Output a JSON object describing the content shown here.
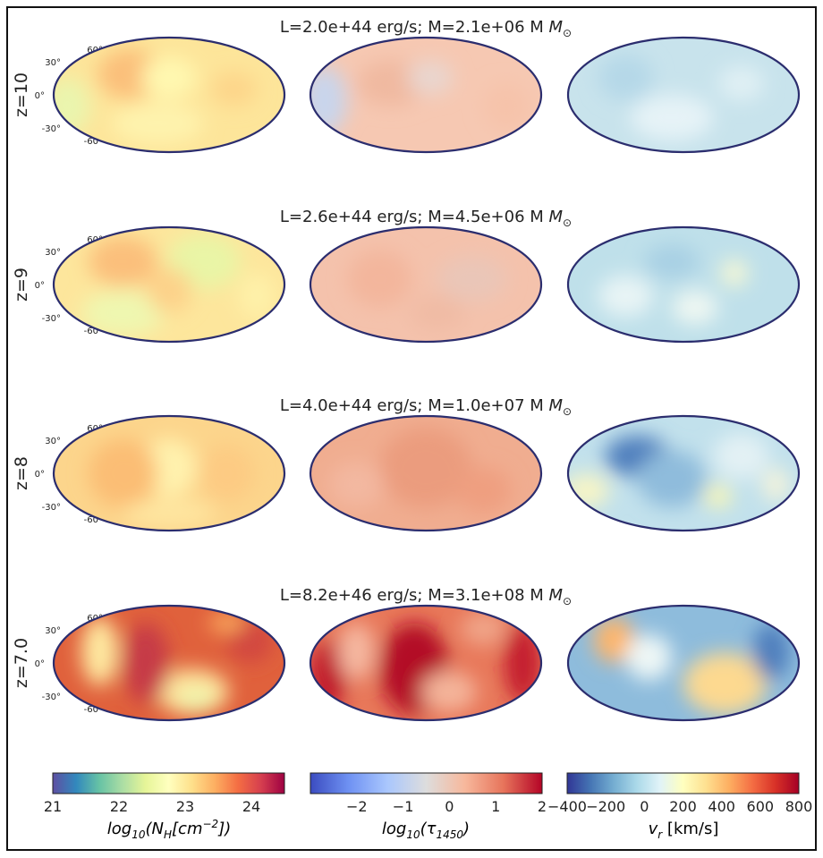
{
  "chart_data": {
    "type": "heatmap",
    "projection": "mollweide",
    "latitude_ticks": [
      "60°",
      "30°",
      "0°",
      "-30°",
      "-60°"
    ],
    "rows": [
      {
        "label": "z=10",
        "title": "L=2.0e+44 erg/s; M=2.1e+06 M",
        "base": [
          "#fde59a",
          "#f6c8b2",
          "#c8e3ec"
        ],
        "blobs": [
          [
            [
              "#fbbf7a",
              0.33,
              0.32,
              0.14,
              0.22
            ],
            [
              "#fff8b0",
              0.5,
              0.35,
              0.12,
              0.18
            ],
            [
              "#eaf5ae",
              0.06,
              0.6,
              0.1,
              0.25
            ],
            [
              "#fef3ad",
              0.45,
              0.75,
              0.2,
              0.18
            ],
            [
              "#fdd58a",
              0.78,
              0.45,
              0.1,
              0.15
            ]
          ],
          [
            [
              "#f0b9a0",
              0.35,
              0.4,
              0.15,
              0.2
            ],
            [
              "#e9d6cf",
              0.52,
              0.35,
              0.1,
              0.15
            ],
            [
              "#c9d5ec",
              0.06,
              0.55,
              0.1,
              0.3
            ],
            [
              "#f6c3aa",
              0.85,
              0.6,
              0.1,
              0.2
            ]
          ],
          [
            [
              "#e6f3f7",
              0.45,
              0.7,
              0.18,
              0.2
            ],
            [
              "#b5d8e8",
              0.25,
              0.35,
              0.12,
              0.2
            ],
            [
              "#e0f0f4",
              0.75,
              0.4,
              0.1,
              0.15
            ]
          ]
        ]
      },
      {
        "label": "z=9",
        "title": "L=2.6e+44 erg/s; M=4.5e+06 M",
        "base": [
          "#fde69c",
          "#f4c2ac",
          "#bfe0ea"
        ],
        "blobs": [
          [
            [
              "#fbbf7c",
              0.3,
              0.3,
              0.15,
              0.22
            ],
            [
              "#e9f5a6",
              0.65,
              0.3,
              0.16,
              0.24
            ],
            [
              "#eff7b0",
              0.3,
              0.75,
              0.18,
              0.2
            ],
            [
              "#fdd28a",
              0.5,
              0.55,
              0.1,
              0.2
            ],
            [
              "#fef1a9",
              0.88,
              0.6,
              0.08,
              0.2
            ]
          ],
          [
            [
              "#f3b69c",
              0.3,
              0.45,
              0.14,
              0.25
            ],
            [
              "#eac6b8",
              0.7,
              0.45,
              0.15,
              0.2
            ],
            [
              "#f0bba4",
              0.55,
              0.75,
              0.12,
              0.15
            ]
          ],
          [
            [
              "#e8f4f5",
              0.25,
              0.6,
              0.12,
              0.18
            ],
            [
              "#f5f7d5",
              0.72,
              0.4,
              0.06,
              0.12
            ],
            [
              "#a8d0e4",
              0.45,
              0.3,
              0.12,
              0.15
            ],
            [
              "#eef7f2",
              0.55,
              0.7,
              0.1,
              0.15
            ]
          ]
        ]
      },
      {
        "label": "z=8",
        "title": "L=4.0e+44 erg/s; M=1.0e+07 M",
        "base": [
          "#fcd58c",
          "#f0ad90",
          "#c2e1ec"
        ],
        "blobs": [
          [
            [
              "#fff2ae",
              0.5,
              0.45,
              0.12,
              0.25
            ],
            [
              "#fbbd75",
              0.3,
              0.5,
              0.15,
              0.3
            ],
            [
              "#fdcb83",
              0.75,
              0.5,
              0.12,
              0.25
            ],
            [
              "#fee6a0",
              0.5,
              0.85,
              0.2,
              0.12
            ]
          ],
          [
            [
              "#eb9c7e",
              0.5,
              0.45,
              0.2,
              0.35
            ],
            [
              "#f3b8a0",
              0.2,
              0.6,
              0.12,
              0.2
            ],
            [
              "#ef9f80",
              0.75,
              0.65,
              0.12,
              0.2
            ]
          ],
          [
            [
              "#4f7fbd",
              0.3,
              0.35,
              0.14,
              0.18
            ],
            [
              "#8fbcdc",
              0.45,
              0.55,
              0.15,
              0.25
            ],
            [
              "#f7f5c6",
              0.08,
              0.65,
              0.1,
              0.15
            ],
            [
              "#fbf7b4",
              0.65,
              0.7,
              0.06,
              0.1
            ],
            [
              "#e3f1f4",
              0.75,
              0.35,
              0.12,
              0.2
            ],
            [
              "#f3f3dc",
              0.9,
              0.6,
              0.06,
              0.15
            ]
          ]
        ]
      },
      {
        "label": "z=7.0",
        "title": "L=8.2e+46 erg/s; M=3.1e+08 M",
        "base": [
          "#e0613c",
          "#e8785a",
          "#8ebcdc"
        ],
        "blobs": [
          [
            [
              "#fee9a0",
              0.2,
              0.4,
              0.08,
              0.3
            ],
            [
              "#fde39c",
              0.6,
              0.75,
              0.16,
              0.2
            ],
            [
              "#eef6ae",
              0.62,
              0.82,
              0.08,
              0.1
            ],
            [
              "#c63a46",
              0.4,
              0.5,
              0.1,
              0.35
            ],
            [
              "#d2473f",
              0.85,
              0.3,
              0.1,
              0.2
            ],
            [
              "#fdae61",
              0.75,
              0.15,
              0.08,
              0.08
            ]
          ],
          [
            [
              "#b30d28",
              0.45,
              0.55,
              0.15,
              0.4
            ],
            [
              "#c0142c",
              0.08,
              0.6,
              0.08,
              0.3
            ],
            [
              "#c41a2e",
              0.92,
              0.5,
              0.08,
              0.35
            ],
            [
              "#f5b8a0",
              0.2,
              0.4,
              0.08,
              0.25
            ],
            [
              "#f4b49a",
              0.6,
              0.75,
              0.12,
              0.18
            ],
            [
              "#f0a488",
              0.75,
              0.2,
              0.1,
              0.15
            ]
          ],
          [
            [
              "#b2121e",
              0.7,
              0.7,
              0.08,
              0.12
            ],
            [
              "#ec7a48",
              0.68,
              0.68,
              0.14,
              0.22
            ],
            [
              "#fdd990",
              0.68,
              0.68,
              0.18,
              0.27
            ],
            [
              "#e4523a",
              0.2,
              0.3,
              0.06,
              0.15
            ],
            [
              "#fdb56c",
              0.2,
              0.3,
              0.09,
              0.2
            ],
            [
              "#4f7fbd",
              0.88,
              0.4,
              0.08,
              0.25
            ],
            [
              "#eef7f6",
              0.35,
              0.45,
              0.1,
              0.2
            ]
          ]
        ]
      }
    ],
    "colorbars": [
      {
        "name": "column-density",
        "label": "log10(NH[cm−2])",
        "range": [
          21,
          24.5
        ],
        "ticks": [
          "21",
          "22",
          "23",
          "24"
        ],
        "tick_values": [
          21,
          22,
          23,
          24
        ],
        "colors": [
          "#5e4fa2",
          "#3288bd",
          "#66c2a5",
          "#abdda4",
          "#e6f598",
          "#ffffbf",
          "#fee08b",
          "#fdae61",
          "#f46d43",
          "#d53e4f",
          "#9e0142"
        ]
      },
      {
        "name": "optical-depth",
        "label": "log10(τ1450)",
        "range": [
          -3,
          2
        ],
        "ticks": [
          "−2",
          "−1",
          "0",
          "1",
          "2"
        ],
        "tick_values": [
          -2,
          -1,
          0,
          1,
          2
        ],
        "colors": [
          "#3b4cc0",
          "#6f92f3",
          "#aac7fd",
          "#dddddd",
          "#f7b89c",
          "#e7745b",
          "#b40426"
        ]
      },
      {
        "name": "radial-velocity",
        "label": "vr [km/s]",
        "range": [
          -400,
          800
        ],
        "ticks": [
          "−400",
          "−200",
          "0",
          "200",
          "400",
          "600",
          "800"
        ],
        "tick_values": [
          -400,
          -200,
          0,
          200,
          400,
          600,
          800
        ],
        "colors": [
          "#313695",
          "#4575b4",
          "#74add1",
          "#abd9e9",
          "#e0f3f8",
          "#ffffbf",
          "#fee090",
          "#fdae61",
          "#f46d43",
          "#d73027",
          "#a50026"
        ]
      }
    ],
    "colorbar_labels": {
      "nh_text": "log",
      "nh_sub": "10",
      "nh_paren": "(N",
      "nh_h": "H",
      "nh_unit": "[cm",
      "nh_exp": "−2",
      "nh_close": "])",
      "tau_text": "log",
      "tau_sub": "10",
      "tau_paren": "(τ",
      "tau_s": "1450",
      "tau_close": ")",
      "vr_v": "v",
      "vr_sub": "r",
      "vr_unit": " [km/s]"
    },
    "solar_mass_symbol": "M",
    "solar_symbol_sub": "⊙"
  }
}
